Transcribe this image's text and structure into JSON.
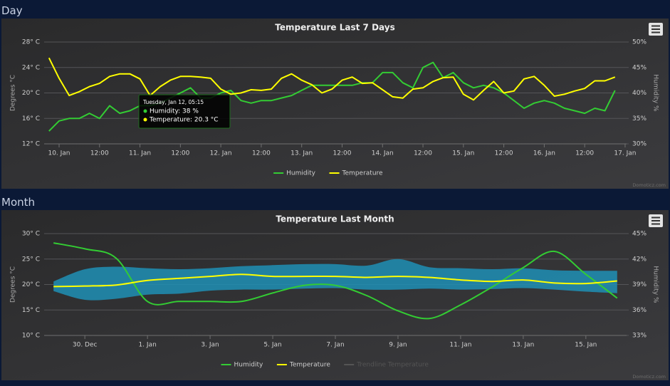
{
  "headings": [
    "Day",
    "Month"
  ],
  "chart_data": [
    {
      "type": "line",
      "title": "Temperature Last 7 Days",
      "y_label": "Degrees °C",
      "y2_label": "Humidity %",
      "credit": "Domoticz.com",
      "x": [
        9.875,
        10,
        10.125,
        10.25,
        10.375,
        10.5,
        10.625,
        10.75,
        10.875,
        11,
        11.125,
        11.25,
        11.375,
        11.5,
        11.625,
        11.75,
        11.875,
        12,
        12.125,
        12.25,
        12.375,
        12.5,
        12.625,
        12.75,
        12.875,
        13,
        13.125,
        13.25,
        13.375,
        13.5,
        13.625,
        13.75,
        13.875,
        14,
        14.125,
        14.25,
        14.375,
        14.5,
        14.625,
        14.75,
        14.875,
        15,
        15.125,
        15.25,
        15.375,
        15.5,
        15.625,
        15.75,
        15.875,
        16,
        16.125,
        16.25,
        16.375,
        16.5,
        16.625,
        16.75,
        16.875
      ],
      "xlim": [
        9.815,
        17.018
      ],
      "xticks": [
        {
          "value": 10,
          "label": "10. Jan"
        },
        {
          "value": 10.5,
          "label": "12:00"
        },
        {
          "value": 11,
          "label": "11. Jan"
        },
        {
          "value": 11.5,
          "label": "12:00"
        },
        {
          "value": 12,
          "label": "12. Jan"
        },
        {
          "value": 12.5,
          "label": "12:00"
        },
        {
          "value": 13,
          "label": "13. Jan"
        },
        {
          "value": 13.5,
          "label": "12:00"
        },
        {
          "value": 14,
          "label": "14. Jan"
        },
        {
          "value": 14.5,
          "label": "12:00"
        },
        {
          "value": 15,
          "label": "15. Jan"
        },
        {
          "value": 15.5,
          "label": "12:00"
        },
        {
          "value": 16,
          "label": "16. Jan"
        },
        {
          "value": 16.5,
          "label": "12:00"
        },
        {
          "value": 17,
          "label": "17. Jan"
        }
      ],
      "ylim": [
        12,
        28
      ],
      "yticks": [
        {
          "value": 12,
          "label": "12° C"
        },
        {
          "value": 16,
          "label": "16° C"
        },
        {
          "value": 20,
          "label": "20° C"
        },
        {
          "value": 24,
          "label": "24° C"
        },
        {
          "value": 28,
          "label": "28° C"
        }
      ],
      "y2lim": [
        30,
        50
      ],
      "y2ticks": [
        {
          "value": 30,
          "label": "30%"
        },
        {
          "value": 35,
          "label": "35%"
        },
        {
          "value": 40,
          "label": "40%"
        },
        {
          "value": 45,
          "label": "45%"
        },
        {
          "value": 50,
          "label": "50%"
        }
      ],
      "grid": true,
      "legend": "bottom",
      "smooth": false,
      "series": [
        {
          "name": "Humidity",
          "color": "#33cc33",
          "axis": "y2",
          "values": [
            32.5,
            34.5,
            35,
            35,
            36,
            35,
            37.5,
            36,
            36.5,
            37.5,
            37.5,
            38,
            39,
            40,
            41,
            39,
            39,
            40,
            40.5,
            38.5,
            38,
            38.5,
            38.5,
            39,
            39.5,
            40.5,
            41.5,
            41.5,
            41.5,
            41.5,
            41.5,
            42,
            42,
            44,
            44,
            42,
            41,
            45,
            46,
            43,
            44,
            42,
            41,
            41.5,
            41,
            40,
            38.5,
            37,
            38,
            38.5,
            38,
            37,
            36.5,
            36,
            37,
            36.5,
            40.5
          ]
        },
        {
          "name": "Temperature",
          "color": "#ffff00",
          "values": [
            25.5,
            22.3,
            19.6,
            20.2,
            21.0,
            21.5,
            22.6,
            23.0,
            23.0,
            22.2,
            19.6,
            21.0,
            22.0,
            22.6,
            22.6,
            22.5,
            22.3,
            20.6,
            19.8,
            20.0,
            20.5,
            20.4,
            20.6,
            22.3,
            23.0,
            22.0,
            21.3,
            20.0,
            20.6,
            22.0,
            22.5,
            21.5,
            21.6,
            20.5,
            19.4,
            19.2,
            20.6,
            20.8,
            21.8,
            22.4,
            22.5,
            19.8,
            18.9,
            20.4,
            21.8,
            20.0,
            20.3,
            22.2,
            22.6,
            21.2,
            19.5,
            19.8,
            20.3,
            20.7,
            21.9,
            21.9,
            22.5
          ]
        }
      ],
      "tooltip": {
        "title": "Tuesday, Jan 12, 05:15",
        "lines": [
          "Humidity: 38 %",
          "Temperature: 20.3 °C"
        ]
      }
    },
    {
      "type": "line",
      "title": "Temperature Last Month",
      "y_label": "Degrees °C",
      "y2_label": "Humidity %",
      "credit": "Domoticz.com",
      "categories": [
        null,
        "30. Dec",
        null,
        "1. Jan",
        null,
        "3. Jan",
        null,
        "5. Jan",
        null,
        "7. Jan",
        null,
        "9. Jan",
        null,
        "11. Jan",
        null,
        "13. Jan",
        null,
        "15. Jan",
        null
      ],
      "ylim": [
        10,
        30
      ],
      "yticks": [
        {
          "value": 10,
          "label": "10° C"
        },
        {
          "value": 15,
          "label": "15° C"
        },
        {
          "value": 20,
          "label": "20° C"
        },
        {
          "value": 25,
          "label": "25° C"
        },
        {
          "value": 30,
          "label": "30° C"
        }
      ],
      "y2lim": [
        33,
        45
      ],
      "y2ticks": [
        {
          "value": 33,
          "label": "33%"
        },
        {
          "value": 36,
          "label": "36%"
        },
        {
          "value": 39,
          "label": "39%"
        },
        {
          "value": 42,
          "label": "42%"
        },
        {
          "value": 45,
          "label": "45%"
        }
      ],
      "grid": true,
      "legend": "bottom",
      "smooth": true,
      "series": [
        {
          "name": "Humidity",
          "color": "#33cc33",
          "axis": "y2",
          "values": [
            43.9,
            43.2,
            42.1,
            37.0,
            37.0,
            37.0,
            37.0,
            38.0,
            38.9,
            38.9,
            37.7,
            35.9,
            35.0,
            36.6,
            38.7,
            41.0,
            42.9,
            40.2,
            37.4
          ]
        },
        {
          "name": "Temperature",
          "color": "#ffff00",
          "values": [
            19.6,
            19.7,
            19.9,
            20.8,
            21.2,
            21.6,
            22.0,
            21.6,
            21.6,
            21.6,
            21.4,
            21.6,
            21.4,
            20.9,
            20.6,
            20.9,
            20.3,
            20.2,
            20.7
          ],
          "range": {
            "color": "#1f8fb5",
            "low": [
              18.7,
              17.0,
              17.2,
              18.0,
              18.2,
              18.8,
              19.0,
              19.0,
              19.2,
              19.3,
              19.0,
              19.0,
              19.2,
              19.0,
              19.1,
              19.3,
              19.0,
              18.6,
              18.3
            ],
            "high": [
              20.6,
              23.0,
              23.5,
              23.2,
              23.0,
              23.2,
              23.6,
              23.8,
              24.0,
              24.0,
              23.7,
              25.0,
              23.4,
              23.2,
              23.0,
              23.2,
              22.8,
              22.7,
              22.7
            ]
          }
        },
        {
          "name": "Trendline Temperature",
          "color": "#888888",
          "visible": false
        }
      ]
    }
  ]
}
